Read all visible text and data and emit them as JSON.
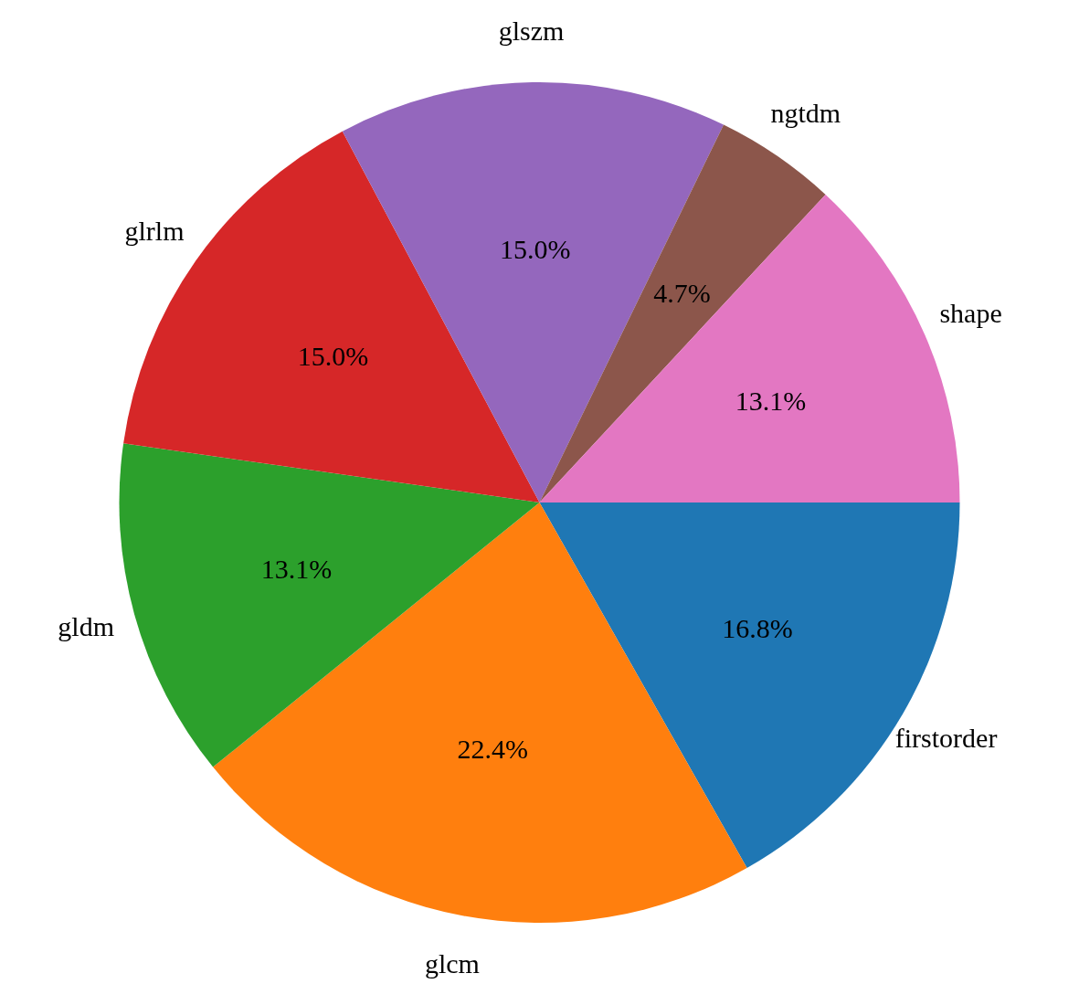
{
  "chart_data": {
    "type": "pie",
    "categories": [
      "firstorder",
      "glcm",
      "gldm",
      "glrlm",
      "glszm",
      "ngtdm",
      "shape"
    ],
    "values": [
      16.8,
      22.4,
      13.1,
      15.0,
      15.0,
      4.7,
      13.1
    ],
    "value_labels": [
      "16.8%",
      "22.4%",
      "13.1%",
      "15.0%",
      "15.0%",
      "4.7%",
      "13.1%"
    ],
    "colors": [
      "#1f77b4",
      "#ff7f0e",
      "#2ca02c",
      "#d62728",
      "#9467bd",
      "#8c564b",
      "#e377c2"
    ],
    "legend": false
  }
}
